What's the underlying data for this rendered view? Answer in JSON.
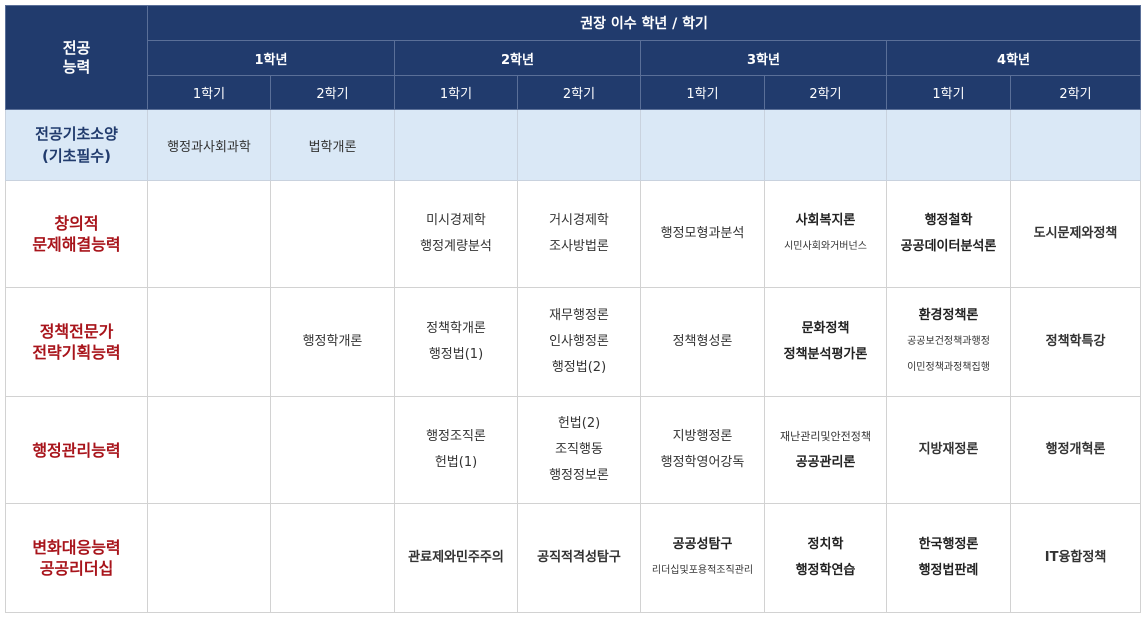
{
  "header": {
    "competency": [
      "전공",
      "능력"
    ],
    "title": "권장 이수 학년 / 학기",
    "years": [
      "1학년",
      "2학년",
      "3학년",
      "4학년"
    ],
    "semesters": [
      "1학기",
      "2학기",
      "1학기",
      "2학기",
      "1학기",
      "2학기",
      "1학기",
      "2학기"
    ]
  },
  "basic": {
    "label": [
      "전공기초소양",
      "(기초필수)"
    ],
    "y1s1": "행정과사회과학",
    "y1s2": "법학개론"
  },
  "creative": {
    "label": [
      "창의적",
      "문제해결능력"
    ],
    "y2s1": [
      "미시경제학",
      "행정계량분석"
    ],
    "y2s2": [
      "거시경제학",
      "조사방법론"
    ],
    "y3s1": "행정모형과분석",
    "y3s2": [
      "사회복지론",
      "시민사회와거버넌스"
    ],
    "y4s1": [
      "행정철학",
      "공공데이터분석론"
    ],
    "y4s2": "도시문제와정책"
  },
  "policy": {
    "label": [
      "정책전문가",
      "전략기획능력"
    ],
    "y1s2": "행정학개론",
    "y2s1": [
      "정책학개론",
      "행정법(1)"
    ],
    "y2s2": [
      "재무행정론",
      "인사행정론",
      "행정법(2)"
    ],
    "y3s1": "정책형성론",
    "y3s2": [
      "문화정책",
      "정책분석평가론"
    ],
    "y4s1": [
      "환경정책론",
      "공공보건정책과행정",
      "이민정책과정책집행"
    ],
    "y4s2": "정책학특강"
  },
  "admin": {
    "label": "행정관리능력",
    "y2s1": [
      "행정조직론",
      "헌법(1)"
    ],
    "y2s2": [
      "헌법(2)",
      "조직행동",
      "행정정보론"
    ],
    "y3s1": [
      "지방행정론",
      "행정학영어강독"
    ],
    "y3s2": [
      "재난관리및안전정책",
      "공공관리론"
    ],
    "y4s1": "지방재정론",
    "y4s2": "행정개혁론"
  },
  "change": {
    "label": [
      "변화대응능력",
      "공공리더십"
    ],
    "y2s1": "관료제와민주주의",
    "y2s2": "공직적격성탐구",
    "y3s1": [
      "공공성탐구",
      "리더십및포용적조직관리"
    ],
    "y3s2": [
      "정치학",
      "행정학연습"
    ],
    "y4s1": [
      "한국행정론",
      "행정법판례"
    ],
    "y4s2": "IT융합정책"
  }
}
